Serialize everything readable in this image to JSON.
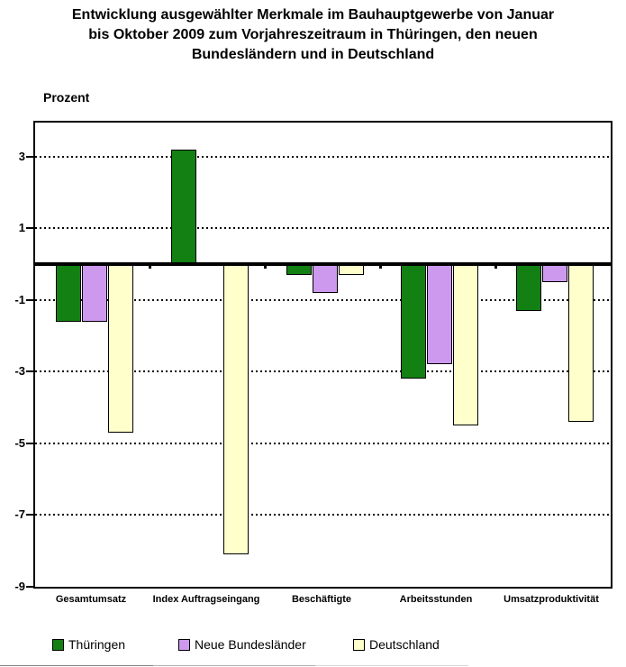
{
  "header": {
    "title_lines": [
      "Entwicklung ausgewählter Merkmale im Bauhauptgewerbe von Januar",
      "bis Oktober 2009 zum Vorjahreszeitraum in Thüringen, den neuen",
      "Bundesländern und in Deutschland"
    ]
  },
  "chart_data": {
    "type": "bar",
    "title": "Entwicklung ausgewählter Merkmale im Bauhauptgewerbe von Januar bis Oktober 2009 zum Vorjahreszeitraum in Thüringen, den neuen Bundesländern und in Deutschland",
    "ylabel": "Prozent",
    "xlabel": "",
    "categories": [
      "Gesamtumsatz",
      "Index Auftragseingang",
      "Beschäftigte",
      "Arbeitsstunden",
      "Umsatzproduktivität"
    ],
    "series": [
      {
        "name": "Thüringen",
        "color": "#128012",
        "values": [
          -1.6,
          3.2,
          -0.3,
          -3.2,
          -1.3
        ]
      },
      {
        "name": "Neue Bundesländer",
        "color": "#CC99EE",
        "values": [
          -1.6,
          null,
          -0.8,
          -2.8,
          -0.5
        ]
      },
      {
        "name": "Deutschland",
        "color": "#FFFFCC",
        "values": [
          -4.7,
          -8.1,
          -0.3,
          -4.5,
          -4.4
        ]
      }
    ],
    "ylim": [
      -9,
      3.95
    ],
    "yticks": [
      3,
      1,
      -1,
      -3,
      -5,
      -7,
      -9
    ],
    "gridlines": [
      3,
      1,
      -1,
      -3,
      -5,
      -7
    ],
    "grid": "horizontal-dotted",
    "legend_position": "bottom",
    "bar_border_color": "#000000",
    "axis_color": "#000000"
  }
}
